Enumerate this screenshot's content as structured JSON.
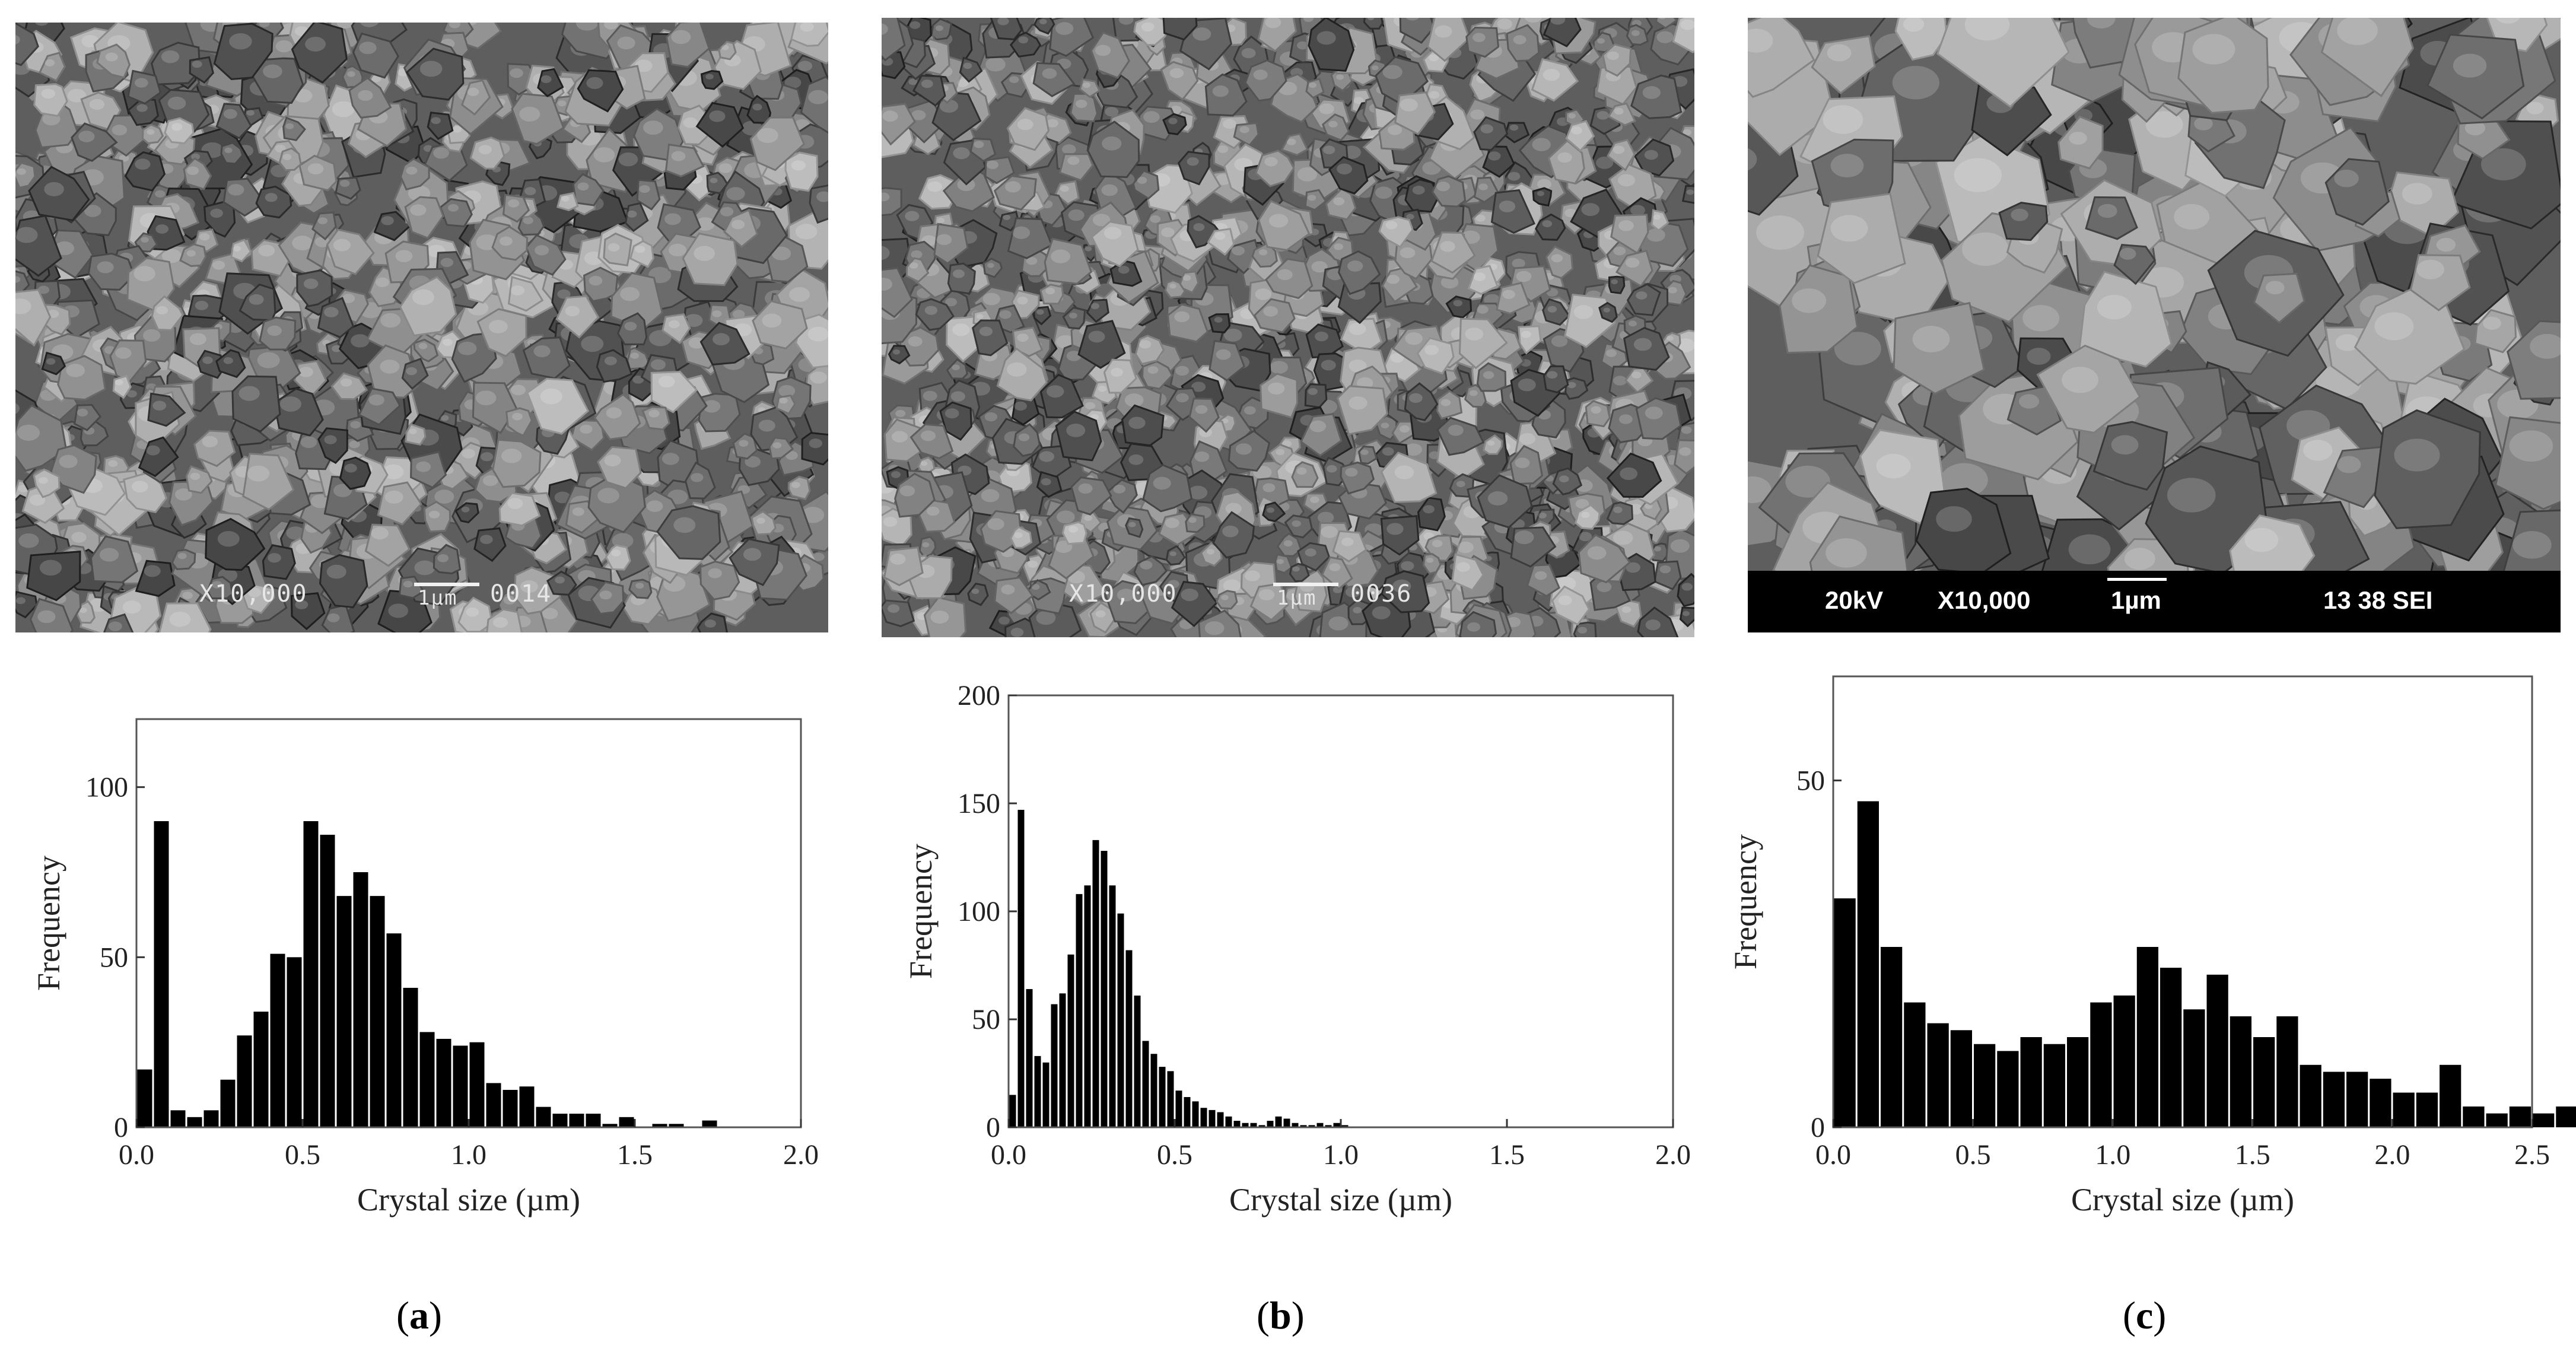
{
  "panels": [
    {
      "id": "a",
      "label_open": "(",
      "label_letter": "a",
      "label_close": ")",
      "micrograph": {
        "style": "overlay",
        "magnification": "X10,000",
        "scale_label": "1µm",
        "code": "0014"
      }
    },
    {
      "id": "b",
      "label_open": "(",
      "label_letter": "b",
      "label_close": ")",
      "micrograph": {
        "style": "overlay",
        "magnification": "X10,000",
        "scale_label": "1µm",
        "code": "0036"
      }
    },
    {
      "id": "c",
      "label_open": "(",
      "label_letter": "c",
      "label_close": ")",
      "micrograph": {
        "style": "bar",
        "voltage": "20kV",
        "magnification": "X10,000",
        "scale_label": "1µm",
        "code": "13 38 SEI"
      }
    }
  ],
  "chart_data": [
    {
      "type": "bar",
      "xlabel": "Crystal size (µm)",
      "ylabel": "Frequency",
      "xlim": [
        0,
        2.0
      ],
      "ylim": [
        0,
        120
      ],
      "xticks": [
        "0.0",
        "0.5",
        "1.0",
        "1.5",
        "2.0"
      ],
      "xtick_values": [
        0,
        0.5,
        1.0,
        1.5,
        2.0
      ],
      "yticks": [
        "0",
        "50",
        "100"
      ],
      "ytick_values": [
        0,
        50,
        100
      ],
      "bin_width": 0.05,
      "bin_start": 0,
      "values": [
        17,
        90,
        5,
        3,
        5,
        14,
        27,
        34,
        51,
        50,
        90,
        86,
        68,
        75,
        68,
        57,
        41,
        28,
        26,
        24,
        25,
        13,
        11,
        12,
        6,
        4,
        4,
        4,
        1,
        3,
        0,
        1,
        1,
        0,
        2,
        0,
        0,
        0,
        0,
        0
      ],
      "color": "#000000"
    },
    {
      "type": "bar",
      "xlabel": "Crystal size (µm)",
      "ylabel": "Frequency",
      "xlim": [
        0,
        2.0
      ],
      "ylim": [
        0,
        200
      ],
      "xticks": [
        "0.0",
        "0.5",
        "1.0",
        "1.5",
        "2.0"
      ],
      "xtick_values": [
        0,
        0.5,
        1.0,
        1.5,
        2.0
      ],
      "yticks": [
        "0",
        "50",
        "100",
        "150",
        "200"
      ],
      "ytick_values": [
        0,
        50,
        100,
        150,
        200
      ],
      "bin_width": 0.025,
      "bin_start": 0,
      "values": [
        15,
        147,
        64,
        33,
        30,
        57,
        62,
        80,
        108,
        112,
        133,
        128,
        112,
        99,
        82,
        61,
        40,
        34,
        28,
        26,
        17,
        14,
        12,
        9,
        8,
        7,
        5,
        3,
        2,
        2,
        1,
        3,
        5,
        4,
        2,
        1,
        1,
        2,
        1,
        2,
        1,
        0,
        0,
        0,
        0,
        0,
        0,
        0,
        0,
        0,
        0,
        0,
        0,
        0,
        0,
        0,
        0,
        0,
        0,
        0,
        0,
        0,
        0,
        0,
        0,
        0,
        0,
        0,
        0,
        0,
        0,
        0,
        0,
        0,
        0,
        0,
        0,
        0,
        0,
        0
      ],
      "color": "#000000"
    },
    {
      "type": "bar",
      "xlabel": "Crystal size (µm)",
      "ylabel": "Frequency",
      "xlim": [
        0,
        2.5
      ],
      "ylim": [
        0,
        65
      ],
      "xticks": [
        "0.0",
        "0.5",
        "1.0",
        "1.5",
        "2.0",
        "2.5"
      ],
      "xtick_values": [
        0,
        0.5,
        1.0,
        1.5,
        2.0,
        2.5
      ],
      "yticks": [
        "0",
        "50"
      ],
      "ytick_values": [
        0,
        50
      ],
      "bin_width": 0.0833,
      "bin_start": 0,
      "values": [
        33,
        47,
        26,
        18,
        15,
        14,
        12,
        11,
        13,
        12,
        13,
        18,
        19,
        26,
        23,
        17,
        22,
        16,
        13,
        16,
        9,
        8,
        8,
        7,
        5,
        5,
        9,
        3,
        2,
        3,
        2,
        3,
        1
      ],
      "color": "#000000"
    }
  ]
}
